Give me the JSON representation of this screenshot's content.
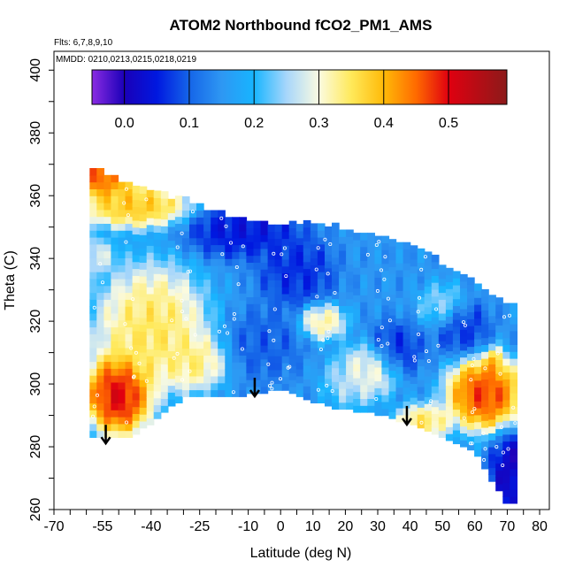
{
  "chart_data": {
    "type": "heatmap",
    "title": "ATOM2 Northbound fCO2_PM1_AMS",
    "subtitle_lines": [
      "Flts: 6,7,8,9,10",
      "MMDD: 0210,0213,0215,0218,0219"
    ],
    "xlabel": "Latitude (deg N)",
    "ylabel": "Theta (C)",
    "xlim": [
      -70,
      83
    ],
    "ylim": [
      260,
      406
    ],
    "x_ticks": [
      {
        "value": -70,
        "label": "-70"
      },
      {
        "value": -55,
        "label": "-55"
      },
      {
        "value": -40,
        "label": "-40"
      },
      {
        "value": -25,
        "label": "-25"
      },
      {
        "value": -10,
        "label": "-10"
      },
      {
        "value": 0,
        "label": "0"
      },
      {
        "value": 10,
        "label": "10"
      },
      {
        "value": 20,
        "label": "20"
      },
      {
        "value": 30,
        "label": "30"
      },
      {
        "value": 40,
        "label": "40"
      },
      {
        "value": 50,
        "label": "50"
      },
      {
        "value": 60,
        "label": "60"
      },
      {
        "value": 70,
        "label": "70"
      },
      {
        "value": 80,
        "label": "80"
      }
    ],
    "x_minor_ticks": [
      -65,
      -60,
      -50,
      -45,
      -35,
      -30,
      -20,
      -15,
      -5,
      5,
      15,
      25,
      35,
      45,
      55,
      65,
      75
    ],
    "y_ticks": [
      {
        "value": 260,
        "label": "260"
      },
      {
        "value": 280,
        "label": "280"
      },
      {
        "value": 300,
        "label": "300"
      },
      {
        "value": 320,
        "label": "320"
      },
      {
        "value": 340,
        "label": "340"
      },
      {
        "value": 360,
        "label": "360"
      },
      {
        "value": 380,
        "label": "380"
      },
      {
        "value": 400,
        "label": "400"
      }
    ],
    "y_minor_ticks": [
      270,
      290,
      310,
      330,
      350,
      370,
      390
    ],
    "colorbar": {
      "range": [
        -0.05,
        0.59
      ],
      "ticks": [
        {
          "value": 0.0,
          "label": "0.0"
        },
        {
          "value": 0.1,
          "label": "0.1"
        },
        {
          "value": 0.2,
          "label": "0.2"
        },
        {
          "value": 0.3,
          "label": "0.3"
        },
        {
          "value": 0.4,
          "label": "0.4"
        },
        {
          "value": 0.5,
          "label": "0.5"
        }
      ],
      "color_stops": [
        {
          "value": -0.05,
          "color": "#8a2be2"
        },
        {
          "value": 0.0,
          "color": "#1a00b8"
        },
        {
          "value": 0.05,
          "color": "#0018e0"
        },
        {
          "value": 0.1,
          "color": "#1565e8"
        },
        {
          "value": 0.15,
          "color": "#2e97f3"
        },
        {
          "value": 0.2,
          "color": "#17b5ff"
        },
        {
          "value": 0.25,
          "color": "#a7d6fb"
        },
        {
          "value": 0.3,
          "color": "#fbfbe0"
        },
        {
          "value": 0.35,
          "color": "#ffe95a"
        },
        {
          "value": 0.4,
          "color": "#ffba08"
        },
        {
          "value": 0.45,
          "color": "#ff6a00"
        },
        {
          "value": 0.5,
          "color": "#e00010"
        },
        {
          "value": 0.59,
          "color": "#8c1a1a"
        }
      ]
    },
    "arrow_markers": [
      {
        "lat": -54,
        "theta": 287
      },
      {
        "lat": -8,
        "theta": 302
      },
      {
        "lat": 39,
        "theta": 293
      }
    ],
    "profiles": [
      {
        "lat": -58,
        "theta_bottom": 283,
        "theta_top": 368
      },
      {
        "lat": -45,
        "theta_bottom": 284,
        "theta_top": 362
      },
      {
        "lat": -30,
        "theta_bottom": 296,
        "theta_top": 358
      },
      {
        "lat": -15,
        "theta_bottom": 296,
        "theta_top": 352
      },
      {
        "lat": 0,
        "theta_bottom": 299,
        "theta_top": 350
      },
      {
        "lat": 15,
        "theta_bottom": 293,
        "theta_top": 350
      },
      {
        "lat": 30,
        "theta_bottom": 291,
        "theta_top": 346
      },
      {
        "lat": 45,
        "theta_bottom": 286,
        "theta_top": 341
      },
      {
        "lat": 60,
        "theta_bottom": 279,
        "theta_top": 331
      },
      {
        "lat": 70,
        "theta_bottom": 262,
        "theta_top": 324
      }
    ],
    "field_hotspots": [
      {
        "lat": -50,
        "theta": 297,
        "value": 0.56,
        "radius_lat": 7,
        "radius_theta": 9
      },
      {
        "lat": -56,
        "theta": 366,
        "value": 0.5,
        "radius_lat": 8,
        "radius_theta": 5
      },
      {
        "lat": -45,
        "theta": 357,
        "value": 0.42,
        "radius_lat": 12,
        "radius_theta": 5
      },
      {
        "lat": -40,
        "theta": 318,
        "value": 0.38,
        "radius_lat": 12,
        "radius_theta": 14
      },
      {
        "lat": -27,
        "theta": 307,
        "value": 0.36,
        "radius_lat": 7,
        "radius_theta": 6
      },
      {
        "lat": -58,
        "theta": 341,
        "value": 0.3,
        "radius_lat": 5,
        "radius_theta": 4
      },
      {
        "lat": 63,
        "theta": 297,
        "value": 0.52,
        "radius_lat": 8,
        "radius_theta": 8
      },
      {
        "lat": 66,
        "theta": 306,
        "value": 0.42,
        "radius_lat": 2,
        "radius_theta": 4
      },
      {
        "lat": 44,
        "theta": 288,
        "value": 0.38,
        "radius_lat": 6,
        "radius_theta": 4
      },
      {
        "lat": 28,
        "theta": 305,
        "value": 0.34,
        "radius_lat": 6,
        "radius_theta": 6
      },
      {
        "lat": 13,
        "theta": 320,
        "value": 0.35,
        "radius_lat": 5,
        "radius_theta": 4
      },
      {
        "lat": -12,
        "theta": 349,
        "value": 0.03,
        "radius_lat": 12,
        "radius_theta": 6
      },
      {
        "lat": 5,
        "theta": 336,
        "value": 0.05,
        "radius_lat": 8,
        "radius_theta": 8
      },
      {
        "lat": 35,
        "theta": 311,
        "value": 0.05,
        "radius_lat": 6,
        "radius_theta": 6
      },
      {
        "lat": 72,
        "theta": 272,
        "value": -0.01,
        "radius_lat": 5,
        "radius_theta": 9
      },
      {
        "lat": 56,
        "theta": 318,
        "value": 0.06,
        "radius_lat": 6,
        "radius_theta": 6
      },
      {
        "lat": -5,
        "theta": 313,
        "value": 0.09,
        "radius_lat": 8,
        "radius_theta": 8
      },
      {
        "lat": 22,
        "theta": 301,
        "value": 0.27,
        "radius_lat": 6,
        "radius_theta": 6
      },
      {
        "lat": 50,
        "theta": 325,
        "value": 0.26,
        "radius_lat": 5,
        "radius_theta": 5
      }
    ],
    "field_background": 0.15,
    "grid": false,
    "legend_position": "top"
  }
}
